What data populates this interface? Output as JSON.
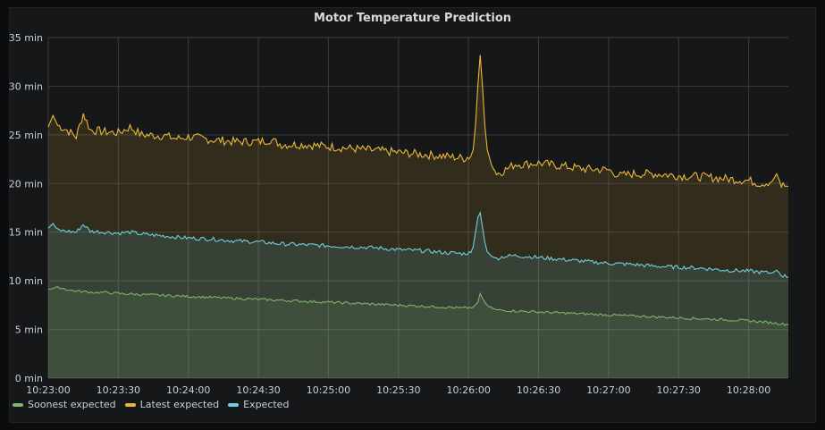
{
  "chart_data": {
    "type": "area",
    "title": "Motor Temperature Prediction",
    "x_ticks": [
      "10:23:00",
      "10:23:30",
      "10:24:00",
      "10:24:30",
      "10:25:00",
      "10:25:30",
      "10:26:00",
      "10:26:30",
      "10:27:00",
      "10:27:30",
      "10:28:00"
    ],
    "y_ticks": [
      "0 min",
      "5 min",
      "10 min",
      "15 min",
      "20 min",
      "25 min",
      "30 min",
      "35 min"
    ],
    "ylim": [
      0,
      35
    ],
    "xlim_seconds": [
      0,
      317
    ],
    "grid": true,
    "legend_position": "bottom-left",
    "series": [
      {
        "name": "Soonest expected",
        "color": "#7eb26d",
        "points": [
          [
            0,
            9.2
          ],
          [
            5,
            9.3
          ],
          [
            10,
            9.0
          ],
          [
            15,
            8.9
          ],
          [
            20,
            8.8
          ],
          [
            25,
            8.8
          ],
          [
            30,
            8.7
          ],
          [
            40,
            8.6
          ],
          [
            50,
            8.5
          ],
          [
            60,
            8.4
          ],
          [
            70,
            8.3
          ],
          [
            80,
            8.2
          ],
          [
            90,
            8.1
          ],
          [
            100,
            8.0
          ],
          [
            110,
            7.9
          ],
          [
            120,
            7.8
          ],
          [
            130,
            7.7
          ],
          [
            140,
            7.6
          ],
          [
            150,
            7.5
          ],
          [
            160,
            7.4
          ],
          [
            170,
            7.3
          ],
          [
            178,
            7.2
          ],
          [
            182,
            7.3
          ],
          [
            184,
            7.8
          ],
          [
            185,
            8.7
          ],
          [
            186,
            8.2
          ],
          [
            188,
            7.4
          ],
          [
            192,
            7.0
          ],
          [
            200,
            6.9
          ],
          [
            210,
            6.8
          ],
          [
            220,
            6.7
          ],
          [
            230,
            6.6
          ],
          [
            240,
            6.5
          ],
          [
            250,
            6.4
          ],
          [
            260,
            6.3
          ],
          [
            270,
            6.2
          ],
          [
            280,
            6.1
          ],
          [
            290,
            6.0
          ],
          [
            300,
            5.9
          ],
          [
            310,
            5.7
          ],
          [
            317,
            5.5
          ]
        ]
      },
      {
        "name": "Latest expected",
        "color": "#eab839",
        "points": [
          [
            0,
            25.8
          ],
          [
            2,
            27.0
          ],
          [
            4,
            26.0
          ],
          [
            8,
            25.5
          ],
          [
            12,
            24.8
          ],
          [
            15,
            27.2
          ],
          [
            18,
            25.5
          ],
          [
            25,
            25.3
          ],
          [
            30,
            25.2
          ],
          [
            35,
            25.8
          ],
          [
            40,
            25.0
          ],
          [
            50,
            24.9
          ],
          [
            55,
            24.6
          ],
          [
            60,
            24.8
          ],
          [
            70,
            24.5
          ],
          [
            80,
            24.3
          ],
          [
            90,
            24.3
          ],
          [
            95,
            24.5
          ],
          [
            100,
            24.0
          ],
          [
            110,
            24.0
          ],
          [
            120,
            23.8
          ],
          [
            130,
            23.6
          ],
          [
            140,
            23.4
          ],
          [
            150,
            23.2
          ],
          [
            160,
            23.0
          ],
          [
            170,
            22.8
          ],
          [
            178,
            22.6
          ],
          [
            181,
            22.8
          ],
          [
            182,
            23.5
          ],
          [
            183,
            26.0
          ],
          [
            184,
            30.0
          ],
          [
            185,
            33.2
          ],
          [
            186,
            30.0
          ],
          [
            187,
            26.0
          ],
          [
            188,
            23.5
          ],
          [
            190,
            21.8
          ],
          [
            192,
            21.0
          ],
          [
            195,
            21.3
          ],
          [
            200,
            22.0
          ],
          [
            205,
            22.0
          ],
          [
            210,
            22.1
          ],
          [
            220,
            21.8
          ],
          [
            230,
            21.5
          ],
          [
            240,
            21.4
          ],
          [
            245,
            20.8
          ],
          [
            250,
            21.0
          ],
          [
            260,
            21.0
          ],
          [
            270,
            20.8
          ],
          [
            280,
            20.7
          ],
          [
            290,
            20.5
          ],
          [
            300,
            20.3
          ],
          [
            305,
            20.0
          ],
          [
            310,
            20.2
          ],
          [
            312,
            21.0
          ],
          [
            314,
            19.8
          ],
          [
            317,
            19.7
          ]
        ]
      },
      {
        "name": "Expected",
        "color": "#6ed0e0",
        "points": [
          [
            0,
            15.4
          ],
          [
            2,
            15.9
          ],
          [
            4,
            15.2
          ],
          [
            8,
            15.1
          ],
          [
            12,
            15.0
          ],
          [
            15,
            15.8
          ],
          [
            18,
            15.1
          ],
          [
            25,
            15.0
          ],
          [
            30,
            14.9
          ],
          [
            35,
            15.0
          ],
          [
            40,
            14.8
          ],
          [
            50,
            14.6
          ],
          [
            60,
            14.4
          ],
          [
            70,
            14.3
          ],
          [
            80,
            14.1
          ],
          [
            90,
            14.0
          ],
          [
            100,
            13.8
          ],
          [
            110,
            13.7
          ],
          [
            120,
            13.6
          ],
          [
            130,
            13.5
          ],
          [
            140,
            13.4
          ],
          [
            150,
            13.2
          ],
          [
            160,
            13.1
          ],
          [
            170,
            12.9
          ],
          [
            178,
            12.8
          ],
          [
            181,
            12.9
          ],
          [
            182,
            13.5
          ],
          [
            183,
            15.0
          ],
          [
            184,
            16.5
          ],
          [
            185,
            17.0
          ],
          [
            186,
            15.5
          ],
          [
            187,
            14.0
          ],
          [
            188,
            13.0
          ],
          [
            190,
            12.5
          ],
          [
            192,
            12.3
          ],
          [
            195,
            12.5
          ],
          [
            200,
            12.6
          ],
          [
            210,
            12.4
          ],
          [
            220,
            12.2
          ],
          [
            230,
            12.0
          ],
          [
            240,
            11.8
          ],
          [
            250,
            11.7
          ],
          [
            260,
            11.5
          ],
          [
            270,
            11.4
          ],
          [
            280,
            11.3
          ],
          [
            290,
            11.1
          ],
          [
            300,
            11.0
          ],
          [
            310,
            10.8
          ],
          [
            312,
            11.1
          ],
          [
            314,
            10.6
          ],
          [
            317,
            10.4
          ]
        ]
      }
    ]
  }
}
